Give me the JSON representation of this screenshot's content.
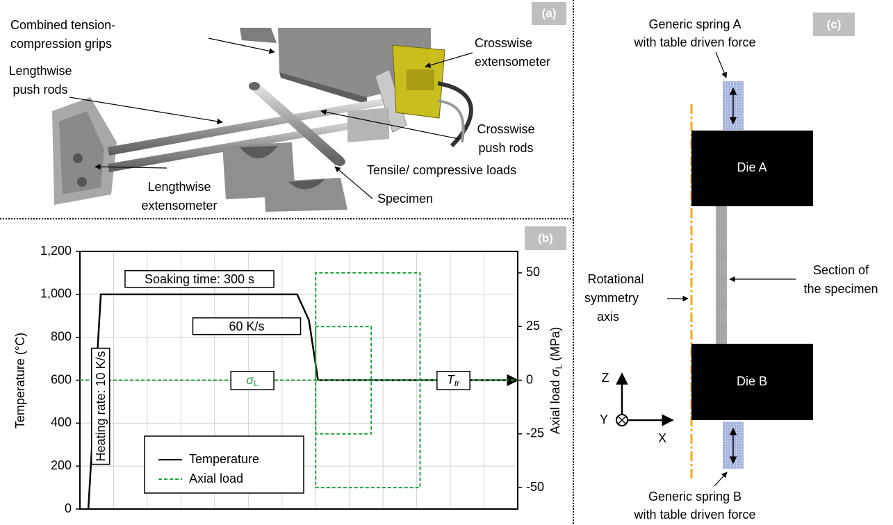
{
  "panel_a": {
    "label": "(a)",
    "callouts": [
      {
        "lines": [
          "Combined tension-",
          "compression grips"
        ]
      },
      {
        "lines": [
          "Lengthwise",
          "push rods"
        ]
      },
      {
        "lines": [
          "Crosswise",
          "extensometer"
        ]
      },
      {
        "lines": [
          "Crosswise",
          "push rods"
        ]
      },
      {
        "lines": [
          "Tensile/ compressive loads"
        ]
      },
      {
        "lines": [
          "Lengthwise",
          "extensometer"
        ]
      },
      {
        "lines": [
          "Specimen"
        ]
      }
    ]
  },
  "chart_data": {
    "type": "line",
    "panel_label": "(b)",
    "ylabel": "Temperature  (°C)",
    "y2label": {
      "text": "Axial load",
      "symbol": "σ",
      "subscript": "L",
      "unit": "(MPa)"
    },
    "xlim": [
      0,
      13
    ],
    "xticks": [
      1,
      2,
      3,
      4,
      5,
      6,
      7,
      8,
      9,
      10,
      11,
      12
    ],
    "ylim": [
      0,
      1200
    ],
    "yticks": [
      0,
      200,
      400,
      600,
      800,
      {
        "value": 1000,
        "label": "1,000"
      },
      {
        "value": 1200,
        "label": "1,200"
      }
    ],
    "y2lim": [
      -60,
      60
    ],
    "y2ticks": [
      -50,
      -25,
      0,
      25,
      50
    ],
    "grid": true,
    "legend": "lower left",
    "series": [
      {
        "name": "Temperature",
        "color": "#000000",
        "x": [
          0.25,
          0.62,
          6.45,
          6.8,
          7.07,
          13
        ],
        "values": [
          0,
          1000,
          1000,
          880,
          600,
          600
        ]
      },
      {
        "name": "Axial load",
        "color": "#1f9e3c",
        "axis": "y2",
        "dashed": true,
        "x": [
          0,
          7.0,
          7.0,
          8.65,
          8.65,
          7.0,
          7.0,
          10.1,
          10.1,
          7.0,
          7.0,
          13
        ],
        "values": [
          0,
          0,
          25,
          25,
          -25,
          -25,
          50,
          50,
          -50,
          -50,
          0,
          0
        ]
      }
    ],
    "annotations": {
      "soaking": "Soaking time: 300 s",
      "cooling": "60 K/s",
      "heating": "Heating rate: 10 K/s",
      "sigma": {
        "symbol": "σ",
        "subscript": "L"
      },
      "transition": {
        "symbol": "T",
        "subscript": "tr"
      }
    }
  },
  "panel_c": {
    "label": "(c)",
    "die_a": "Die A",
    "die_b": "Die B",
    "spring_a": [
      "Generic spring A",
      "with table driven force"
    ],
    "spring_b": [
      "Generic spring B",
      "with table driven force"
    ],
    "section": [
      "Section of",
      "the specimen"
    ],
    "axis": [
      "Rotational",
      "symmetry",
      "axis"
    ],
    "coords": {
      "z": "Z",
      "y": "Y",
      "x": "X"
    }
  }
}
